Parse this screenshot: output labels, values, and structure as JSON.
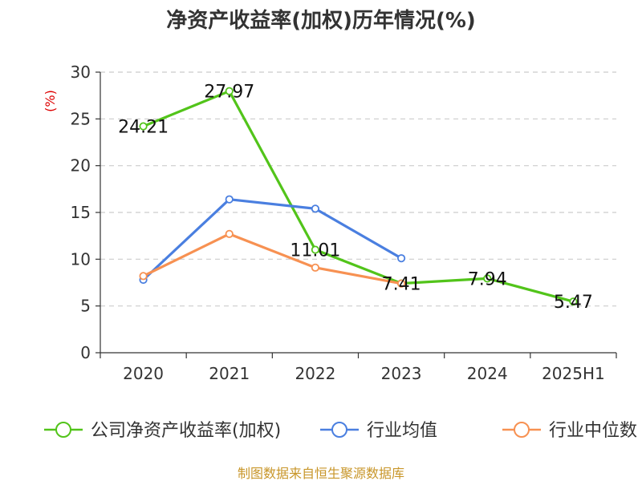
{
  "chart_data": {
    "type": "line",
    "title": "净资产收益率(加权)历年情况(%)",
    "ylabel": "(%)",
    "xlabel": "",
    "categories": [
      "2020",
      "2021",
      "2022",
      "2023",
      "2024",
      "2025H1"
    ],
    "ylim": [
      0,
      30
    ],
    "yticks": [
      0,
      5,
      10,
      15,
      20,
      25,
      30
    ],
    "grid": true,
    "legend_position": "bottom",
    "series": [
      {
        "name": "公司净资产收益率(加权)",
        "color": "#52c41a",
        "values": [
          24.21,
          27.97,
          11.01,
          7.41,
          7.94,
          5.47
        ],
        "labels": [
          "24.21",
          "27.97",
          "11.01",
          "7.41",
          "7.94",
          "5.47"
        ]
      },
      {
        "name": "行业均值",
        "color": "#4a7fe0",
        "values": [
          7.8,
          16.4,
          15.4,
          10.1,
          null,
          null
        ]
      },
      {
        "name": "行业中位数",
        "color": "#f79152",
        "values": [
          8.2,
          12.7,
          9.1,
          7.4,
          null,
          null
        ]
      }
    ],
    "source": "制图数据来自恒生聚源数据库"
  }
}
